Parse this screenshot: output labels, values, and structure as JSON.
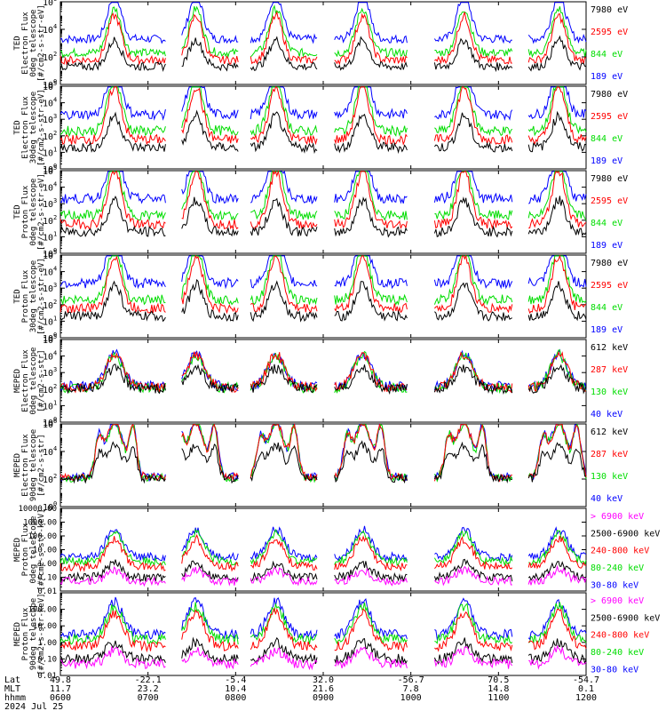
{
  "chart_data": [
    {
      "type": "line",
      "ylabel": [
        "TED",
        "Electron Flux",
        "0deg telescope",
        "[#/cm2-s-str-eV]"
      ],
      "y_scale": "log",
      "ylim": [
        1,
        1000000
      ],
      "y_ticks": [
        "10^0",
        "10^2",
        "10^4",
        "10^6"
      ],
      "series": [
        {
          "name": "7980 eV",
          "color": "#000000"
        },
        {
          "name": "2595 eV",
          "color": "#ff0000"
        },
        {
          "name": "844 eV",
          "color": "#00dd00"
        },
        {
          "name": "189 eV",
          "color": "#0000ff"
        }
      ]
    },
    {
      "type": "line",
      "ylabel": [
        "TED",
        "Electron Flux",
        "30deg telescope",
        "[#/cm2-s-str-eV]"
      ],
      "y_scale": "log",
      "ylim": [
        1,
        100000
      ],
      "y_ticks": [
        "10^0",
        "10^1",
        "10^2",
        "10^3",
        "10^4",
        "10^5"
      ],
      "series": [
        {
          "name": "7980 eV",
          "color": "#000000"
        },
        {
          "name": "2595 eV",
          "color": "#ff0000"
        },
        {
          "name": "844 eV",
          "color": "#00dd00"
        },
        {
          "name": "189 eV",
          "color": "#0000ff"
        }
      ]
    },
    {
      "type": "line",
      "ylabel": [
        "TED",
        "Proton Flux",
        "0deg telescope",
        "[#/cm2-s-str-eV]"
      ],
      "y_scale": "log",
      "ylim": [
        1,
        100000
      ],
      "y_ticks": [
        "10^0",
        "10^1",
        "10^2",
        "10^3",
        "10^4",
        "10^5"
      ],
      "series": [
        {
          "name": "7980 eV",
          "color": "#000000"
        },
        {
          "name": "2595 eV",
          "color": "#ff0000"
        },
        {
          "name": "844 eV",
          "color": "#00dd00"
        },
        {
          "name": "189 eV",
          "color": "#0000ff"
        }
      ]
    },
    {
      "type": "line",
      "ylabel": [
        "TED",
        "Proton Flux",
        "30deg telescope",
        "[#/cm2-s-str-eV]"
      ],
      "y_scale": "log",
      "ylim": [
        1,
        100000
      ],
      "y_ticks": [
        "10^0",
        "10^1",
        "10^2",
        "10^3",
        "10^4",
        "10^5"
      ],
      "series": [
        {
          "name": "7980 eV",
          "color": "#000000"
        },
        {
          "name": "2595 eV",
          "color": "#ff0000"
        },
        {
          "name": "844 eV",
          "color": "#00dd00"
        },
        {
          "name": "189 eV",
          "color": "#0000ff"
        }
      ]
    },
    {
      "type": "line",
      "ylabel": [
        "MEPED",
        "Electron Flux",
        "0deg telescope",
        "[#/cm2-s-str]"
      ],
      "y_scale": "log",
      "ylim": [
        1,
        100000
      ],
      "y_ticks": [
        "10^0",
        "10^1",
        "10^2",
        "10^3",
        "10^4",
        "10^5"
      ],
      "series": [
        {
          "name": "612 keV",
          "color": "#000000"
        },
        {
          "name": "287 keV",
          "color": "#ff0000"
        },
        {
          "name": "130 keV",
          "color": "#00dd00"
        },
        {
          "name": "40 keV",
          "color": "#0000ff"
        }
      ]
    },
    {
      "type": "line",
      "ylabel": [
        "MEPED",
        "Electron Flux",
        "90deg telescope",
        "[#/cm2-s-str]"
      ],
      "y_scale": "log",
      "ylim": [
        1,
        1000000
      ],
      "y_ticks": [
        "10^0",
        "10^2",
        "10^4",
        "10^6"
      ],
      "series": [
        {
          "name": "612 keV",
          "color": "#000000"
        },
        {
          "name": "287 keV",
          "color": "#ff0000"
        },
        {
          "name": "130 keV",
          "color": "#00dd00"
        },
        {
          "name": "40 keV",
          "color": "#0000ff"
        }
      ]
    },
    {
      "type": "line",
      "ylabel": [
        "MEPED",
        "Proton Flux",
        "0deg telescope",
        "[#/cm2-s-str-keV]"
      ],
      "y_scale": "log",
      "ylim": [
        0.01,
        10000
      ],
      "y_ticks": [
        "0.01",
        "0.10",
        "1.00",
        "10.00",
        "100.00",
        "1000.00",
        "10000.00"
      ],
      "series": [
        {
          "name": "> 6900 keV",
          "color": "#ff00ff"
        },
        {
          "name": "2500-6900 keV",
          "color": "#000000"
        },
        {
          "name": "240-800 keV",
          "color": "#ff0000"
        },
        {
          "name": "80-240 keV",
          "color": "#00dd00"
        },
        {
          "name": "30-80 keV",
          "color": "#0000ff"
        }
      ]
    },
    {
      "type": "line",
      "ylabel": [
        "MEPED",
        "Proton Flux",
        "90deg telescope",
        "[#/cm2-s-str-keV]"
      ],
      "y_scale": "log",
      "ylim": [
        0.01,
        1000
      ],
      "y_ticks": [
        "0.01",
        "0.10",
        "1.00",
        "10.00",
        "100.00"
      ],
      "series": [
        {
          "name": "> 6900 keV",
          "color": "#ff00ff"
        },
        {
          "name": "2500-6900 keV",
          "color": "#000000"
        },
        {
          "name": "240-800 keV",
          "color": "#ff0000"
        },
        {
          "name": "80-240 keV",
          "color": "#00dd00"
        },
        {
          "name": "30-80 keV",
          "color": "#0000ff"
        }
      ]
    }
  ],
  "x_axis": {
    "row_labels": [
      "Lat",
      "MLT",
      "hhmm",
      "2024 Jul 25"
    ],
    "columns": [
      {
        "lat": "49.8",
        "mlt": "11.7",
        "hhmm": "0600"
      },
      {
        "lat": "-22.1",
        "mlt": "23.2",
        "hhmm": "0700"
      },
      {
        "lat": "-5.4",
        "mlt": "10.4",
        "hhmm": "0800"
      },
      {
        "lat": "32.0",
        "mlt": "21.6",
        "hhmm": "0900"
      },
      {
        "lat": "-56.7",
        "mlt": "7.8",
        "hhmm": "1000"
      },
      {
        "lat": "70.5",
        "mlt": "14.8",
        "hhmm": "1100"
      },
      {
        "lat": "-54.7",
        "mlt": "0.1",
        "hhmm": "1200"
      }
    ]
  },
  "passes": [
    0.103,
    0.258,
    0.41,
    0.575,
    0.768,
    0.948
  ]
}
